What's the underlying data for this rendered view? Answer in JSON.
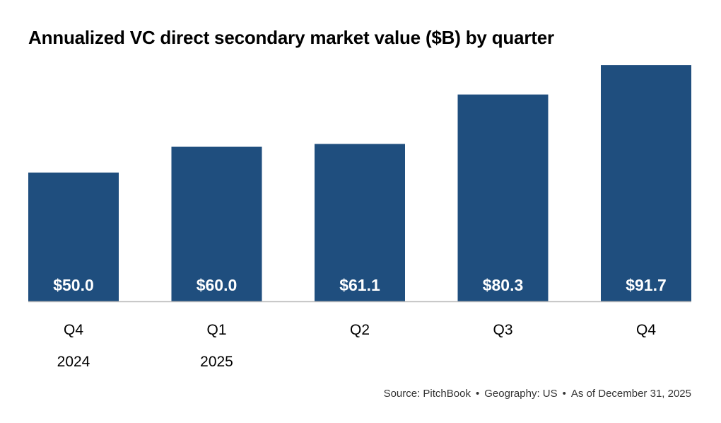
{
  "title": "Annualized VC direct secondary market value ($B) by quarter",
  "source": {
    "source": "Source: PitchBook",
    "geography": "Geography: US",
    "as_of": "As of December 31, 2025",
    "separator": "•"
  },
  "chart_data": {
    "type": "bar",
    "title": "Annualized VC direct secondary market value ($B) by quarter",
    "categories": [
      "Q4",
      "Q1",
      "Q2",
      "Q3",
      "Q4"
    ],
    "years": [
      "2024",
      "2025",
      "",
      "",
      ""
    ],
    "values": [
      50.0,
      60.0,
      61.1,
      80.3,
      91.7
    ],
    "data_labels": [
      "$50.0",
      "$60.0",
      "$61.1",
      "$80.3",
      "$91.7"
    ],
    "ylim": [
      0,
      92
    ],
    "xlabel": "",
    "ylabel": "",
    "grid": false,
    "bar_color": "#1f4e7e",
    "label_color": "#ffffff",
    "axis_color": "#bbbbbb"
  }
}
